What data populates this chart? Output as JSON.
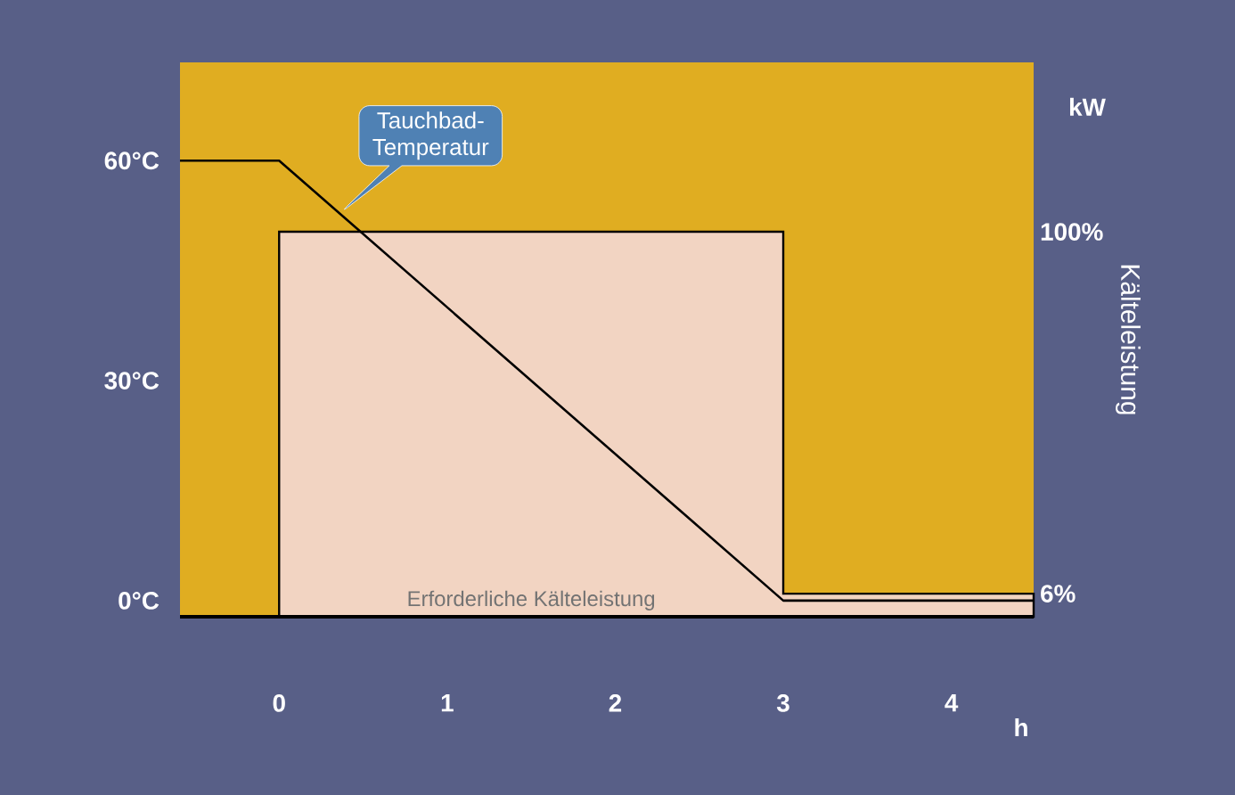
{
  "chart_data": {
    "type": "line",
    "xlabel": "h",
    "y2label": "Kälteleistung",
    "annotations": [
      "kW"
    ],
    "xlim": [
      -0.59,
      4.49
    ],
    "xticks": [
      0,
      1,
      2,
      3,
      4
    ],
    "ylim": [
      -2.2,
      73.4
    ],
    "yticks": [
      {
        "value": 0,
        "label": "0°C"
      },
      {
        "value": 30,
        "label": "30°C"
      },
      {
        "value": 60,
        "label": "60°C"
      }
    ],
    "y2lim": [
      0,
      144
    ],
    "y2ticks": [
      {
        "value": 6,
        "label": "6%"
      },
      {
        "value": 100,
        "label": "100%"
      }
    ],
    "series": [
      {
        "name": "Erforderliche Kälteleistung",
        "type": "area",
        "axis": "y2",
        "color": "#f2d4c2",
        "x": [
          0,
          3,
          3,
          4.49
        ],
        "values": [
          100,
          100,
          6,
          6
        ]
      },
      {
        "name": "Tauchbad-Temperatur",
        "axis": "y",
        "color": "#000000",
        "x": [
          -0.59,
          0,
          3,
          4.49
        ],
        "values": [
          60,
          60,
          0,
          0
        ]
      }
    ]
  }
}
